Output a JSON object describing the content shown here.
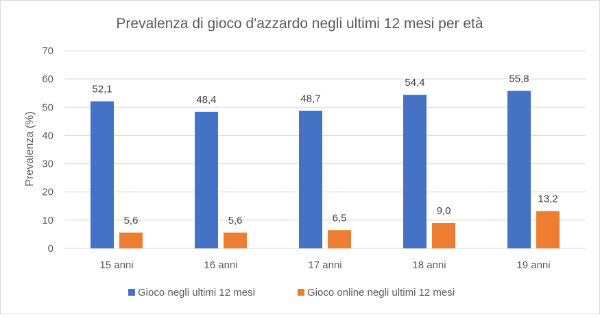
{
  "chart_data": {
    "type": "bar",
    "title": "Prevalenza di gioco d'azzardo negli ultimi 12 mesi per età",
    "xlabel": "",
    "ylabel": "Prevalenza (%)",
    "categories": [
      "15 anni",
      "16 anni",
      "17 anni",
      "18 anni",
      "19 anni"
    ],
    "ylim": [
      0,
      70
    ],
    "yticks": [
      "0",
      "10",
      "20",
      "30",
      "40",
      "50",
      "60",
      "70"
    ],
    "grid": true,
    "legend_position": "bottom",
    "series": [
      {
        "name": "Gioco negli ultimi 12 mesi",
        "color": "#4472c4",
        "values": [
          52.1,
          48.4,
          48.7,
          54.4,
          55.8
        ],
        "labels": [
          "52,1",
          "48,4",
          "48,7",
          "54,4",
          "55,8"
        ]
      },
      {
        "name": "Gioco online negli ultimi 12 mesi",
        "color": "#ed7d31",
        "values": [
          5.6,
          5.6,
          6.5,
          9.0,
          13.2
        ],
        "labels": [
          "5,6",
          "5,6",
          "6,5",
          "9,0",
          "13,2"
        ]
      }
    ]
  }
}
